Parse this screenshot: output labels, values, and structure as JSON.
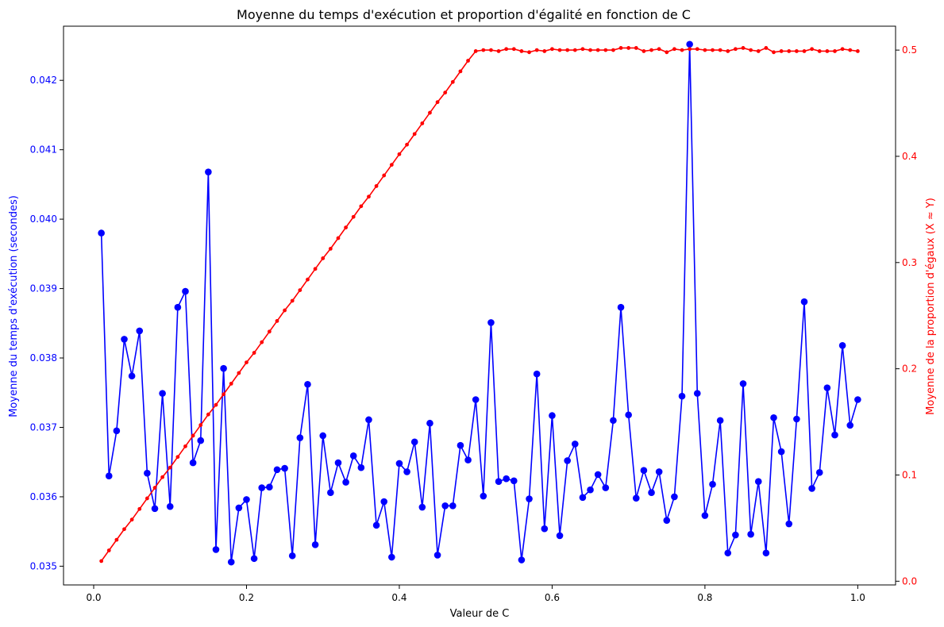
{
  "chart_data": {
    "type": "line",
    "title": "Moyenne du temps d'exécution et proportion d'égalité en fonction de C",
    "xlabel": "Valeur de C",
    "ylabel_left": "Moyenne du temps d'exécution (secondes)",
    "ylabel_right": "Moyenne de la proportion d'égaux (X ≈ Y)",
    "xlim": [
      -0.0395,
      1.0495
    ],
    "ylim_left": [
      0.03473,
      0.04278
    ],
    "ylim_right": [
      -0.0035,
      0.5225
    ],
    "xticks": [
      0.0,
      0.2,
      0.4,
      0.6,
      0.8,
      1.0
    ],
    "xtick_labels": [
      "0.0",
      "0.2",
      "0.4",
      "0.6",
      "0.8",
      "1.0"
    ],
    "yticks_left": [
      0.035,
      0.036,
      0.037,
      0.038,
      0.039,
      0.04,
      0.041,
      0.042
    ],
    "ytick_labels_left": [
      "0.035",
      "0.036",
      "0.037",
      "0.038",
      "0.039",
      "0.040",
      "0.041",
      "0.042"
    ],
    "yticks_right": [
      0.0,
      0.1,
      0.2,
      0.3,
      0.4,
      0.5
    ],
    "ytick_labels_right": [
      "0.0",
      "0.1",
      "0.2",
      "0.3",
      "0.4",
      "0.5"
    ],
    "grid": false,
    "colors": {
      "left": "#0000ff",
      "right": "#ff0000",
      "axis": "#000000"
    },
    "series": [
      {
        "axis": "left",
        "color": "#0000ff",
        "marker": "circle",
        "x": [
          0.01,
          0.02,
          0.03,
          0.04,
          0.05,
          0.06,
          0.07,
          0.08,
          0.09,
          0.1,
          0.11,
          0.12,
          0.13,
          0.14,
          0.15,
          0.16,
          0.17,
          0.18,
          0.19,
          0.2,
          0.21,
          0.22,
          0.23,
          0.24,
          0.25,
          0.26,
          0.27,
          0.28,
          0.29,
          0.3,
          0.31,
          0.32,
          0.33,
          0.34,
          0.35,
          0.36,
          0.37,
          0.38,
          0.39,
          0.4,
          0.41,
          0.42,
          0.43,
          0.44,
          0.45,
          0.46,
          0.47,
          0.48,
          0.49,
          0.5,
          0.51,
          0.52,
          0.53,
          0.54,
          0.55,
          0.56,
          0.57,
          0.58,
          0.59,
          0.6,
          0.61,
          0.62,
          0.63,
          0.64,
          0.65,
          0.66,
          0.67,
          0.68,
          0.69,
          0.7,
          0.71,
          0.72,
          0.73,
          0.74,
          0.75,
          0.76,
          0.77,
          0.78,
          0.79,
          0.8,
          0.81,
          0.82,
          0.83,
          0.84,
          0.85,
          0.86,
          0.87,
          0.88,
          0.89,
          0.9,
          0.91,
          0.92,
          0.93,
          0.94,
          0.95,
          0.96,
          0.97,
          0.98,
          0.99,
          1.0
        ],
        "y": [
          0.0398,
          0.0363,
          0.03695,
          0.03827,
          0.03774,
          0.03839,
          0.03634,
          0.03583,
          0.03749,
          0.03586,
          0.03873,
          0.03896,
          0.03649,
          0.03681,
          0.04068,
          0.03524,
          0.03785,
          0.03506,
          0.03584,
          0.03596,
          0.03511,
          0.03613,
          0.03614,
          0.03639,
          0.03641,
          0.03515,
          0.03685,
          0.03762,
          0.03531,
          0.03688,
          0.03606,
          0.03649,
          0.03621,
          0.03659,
          0.03642,
          0.03711,
          0.03559,
          0.03593,
          0.03513,
          0.03648,
          0.03636,
          0.03679,
          0.03585,
          0.03706,
          0.03516,
          0.03587,
          0.03587,
          0.03674,
          0.03653,
          0.0374,
          0.03601,
          0.03851,
          0.03622,
          0.03626,
          0.03623,
          0.03509,
          0.03597,
          0.03777,
          0.03554,
          0.03717,
          0.03544,
          0.03652,
          0.03676,
          0.03599,
          0.0361,
          0.03632,
          0.03613,
          0.0371,
          0.03873,
          0.03718,
          0.03598,
          0.03638,
          0.03606,
          0.03636,
          0.03566,
          0.036,
          0.03745,
          0.04252,
          0.03749,
          0.03573,
          0.03618,
          0.0371,
          0.03519,
          0.03545,
          0.03763,
          0.03546,
          0.03622,
          0.03519,
          0.03714,
          0.03665,
          0.03561,
          0.03712,
          0.03881,
          0.03612,
          0.03635,
          0.03757,
          0.03689,
          0.03818,
          0.03703,
          0.0374
        ]
      },
      {
        "axis": "right",
        "color": "#ff0000",
        "marker": "dot",
        "x": [
          0.01,
          0.02,
          0.03,
          0.04,
          0.05,
          0.06,
          0.07,
          0.08,
          0.09,
          0.1,
          0.11,
          0.12,
          0.13,
          0.14,
          0.15,
          0.16,
          0.17,
          0.18,
          0.19,
          0.2,
          0.21,
          0.22,
          0.23,
          0.24,
          0.25,
          0.26,
          0.27,
          0.28,
          0.29,
          0.3,
          0.31,
          0.32,
          0.33,
          0.34,
          0.35,
          0.36,
          0.37,
          0.38,
          0.39,
          0.4,
          0.41,
          0.42,
          0.43,
          0.44,
          0.45,
          0.46,
          0.47,
          0.48,
          0.49,
          0.5,
          0.51,
          0.52,
          0.53,
          0.54,
          0.55,
          0.56,
          0.57,
          0.58,
          0.59,
          0.6,
          0.61,
          0.62,
          0.63,
          0.64,
          0.65,
          0.66,
          0.67,
          0.68,
          0.69,
          0.7,
          0.71,
          0.72,
          0.73,
          0.74,
          0.75,
          0.76,
          0.77,
          0.78,
          0.79,
          0.8,
          0.81,
          0.82,
          0.83,
          0.84,
          0.85,
          0.86,
          0.87,
          0.88,
          0.89,
          0.9,
          0.91,
          0.92,
          0.93,
          0.94,
          0.95,
          0.96,
          0.97,
          0.98,
          0.99,
          1.0
        ],
        "y": [
          0.019,
          0.029,
          0.039,
          0.049,
          0.058,
          0.068,
          0.078,
          0.088,
          0.098,
          0.107,
          0.117,
          0.127,
          0.137,
          0.147,
          0.157,
          0.166,
          0.176,
          0.186,
          0.196,
          0.206,
          0.215,
          0.225,
          0.235,
          0.245,
          0.255,
          0.264,
          0.274,
          0.284,
          0.294,
          0.304,
          0.313,
          0.323,
          0.333,
          0.343,
          0.353,
          0.362,
          0.372,
          0.382,
          0.392,
          0.402,
          0.411,
          0.421,
          0.431,
          0.441,
          0.451,
          0.46,
          0.47,
          0.48,
          0.49,
          0.499,
          0.5,
          0.5,
          0.499,
          0.501,
          0.501,
          0.499,
          0.498,
          0.5,
          0.499,
          0.501,
          0.5,
          0.5,
          0.5,
          0.501,
          0.5,
          0.5,
          0.5,
          0.5,
          0.502,
          0.502,
          0.502,
          0.499,
          0.5,
          0.501,
          0.498,
          0.501,
          0.5,
          0.501,
          0.501,
          0.5,
          0.5,
          0.5,
          0.499,
          0.501,
          0.502,
          0.5,
          0.499,
          0.502,
          0.498,
          0.499,
          0.499,
          0.499,
          0.499,
          0.501,
          0.499,
          0.499,
          0.499,
          0.501,
          0.5,
          0.499
        ]
      }
    ]
  }
}
